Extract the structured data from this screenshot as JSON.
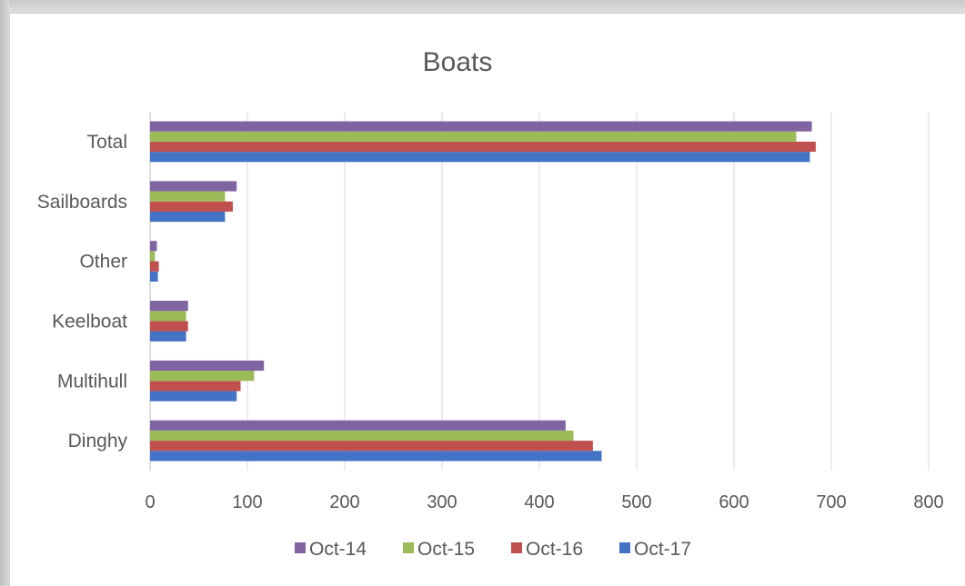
{
  "chart_data": {
    "type": "bar",
    "orientation": "horizontal",
    "title": "Boats",
    "xlabel": "",
    "ylabel": "",
    "categories": [
      "Dinghy",
      "Multihull",
      "Keelboat",
      "Other",
      "Sailboards",
      "Total"
    ],
    "series": [
      {
        "name": "Oct-17",
        "color": "#4472C4",
        "values": [
          464,
          89,
          37,
          8,
          77,
          678
        ]
      },
      {
        "name": "Oct-16",
        "color": "#C0504D",
        "values": [
          455,
          93,
          39,
          9,
          85,
          684
        ]
      },
      {
        "name": "Oct-15",
        "color": "#9BBB59",
        "values": [
          435,
          107,
          37,
          5,
          77,
          664
        ]
      },
      {
        "name": "Oct-14",
        "color": "#8064A2",
        "values": [
          427,
          117,
          39,
          7,
          89,
          680
        ]
      }
    ],
    "legend_order": [
      "Oct-14",
      "Oct-15",
      "Oct-16",
      "Oct-17"
    ],
    "xlim": [
      0,
      800
    ],
    "xticks": [
      0,
      100,
      200,
      300,
      400,
      500,
      600,
      700,
      800
    ],
    "grid": "vertical",
    "legend_position": "bottom"
  }
}
